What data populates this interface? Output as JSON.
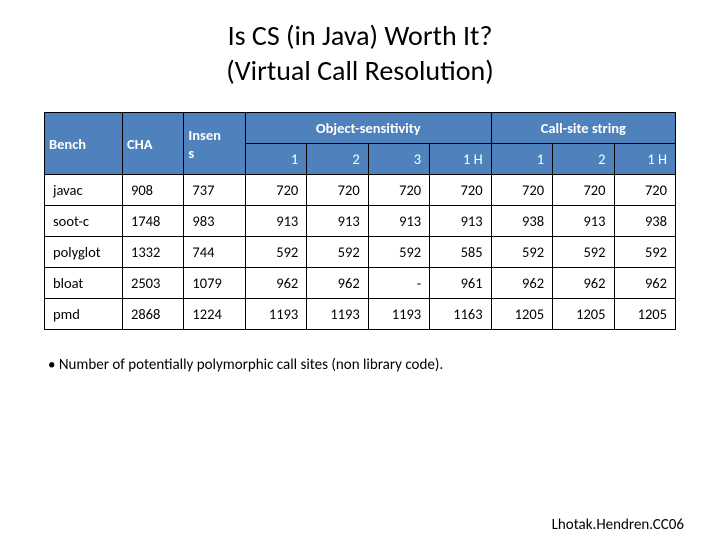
{
  "title_line1": "Is CS (in Java) Worth It?",
  "title_line2": "(Virtual Call Resolution)",
  "columns": {
    "bench": "Bench",
    "cha": "CHA",
    "insens_l1": "Insen",
    "insens_l2": "s",
    "group_obj": "Object-sensitivity",
    "group_css": "Call-site string",
    "sub": [
      "1",
      "2",
      "3",
      "1 H",
      "1",
      "2",
      "1 H"
    ]
  },
  "rows": [
    {
      "bench": "javac",
      "cha": "908",
      "insens": "737",
      "v": [
        "720",
        "720",
        "720",
        "720",
        "720",
        "720",
        "720"
      ]
    },
    {
      "bench": "soot-c",
      "cha": "1748",
      "insens": "983",
      "v": [
        "913",
        "913",
        "913",
        "913",
        "938",
        "913",
        "938"
      ]
    },
    {
      "bench": "polyglot",
      "cha": "1332",
      "insens": "744",
      "v": [
        "592",
        "592",
        "592",
        "585",
        "592",
        "592",
        "592"
      ]
    },
    {
      "bench": "bloat",
      "cha": "2503",
      "insens": "1079",
      "v": [
        "962",
        "962",
        "-",
        "961",
        "962",
        "962",
        "962"
      ]
    },
    {
      "bench": "pmd",
      "cha": "2868",
      "insens": "1224",
      "v": [
        "1193",
        "1193",
        "1193",
        "1163",
        "1205",
        "1205",
        "1205"
      ]
    }
  ],
  "bullet": "• Number of potentially polymorphic call sites (non library code).",
  "citation": "Lhotak.Hendren.CC06"
}
